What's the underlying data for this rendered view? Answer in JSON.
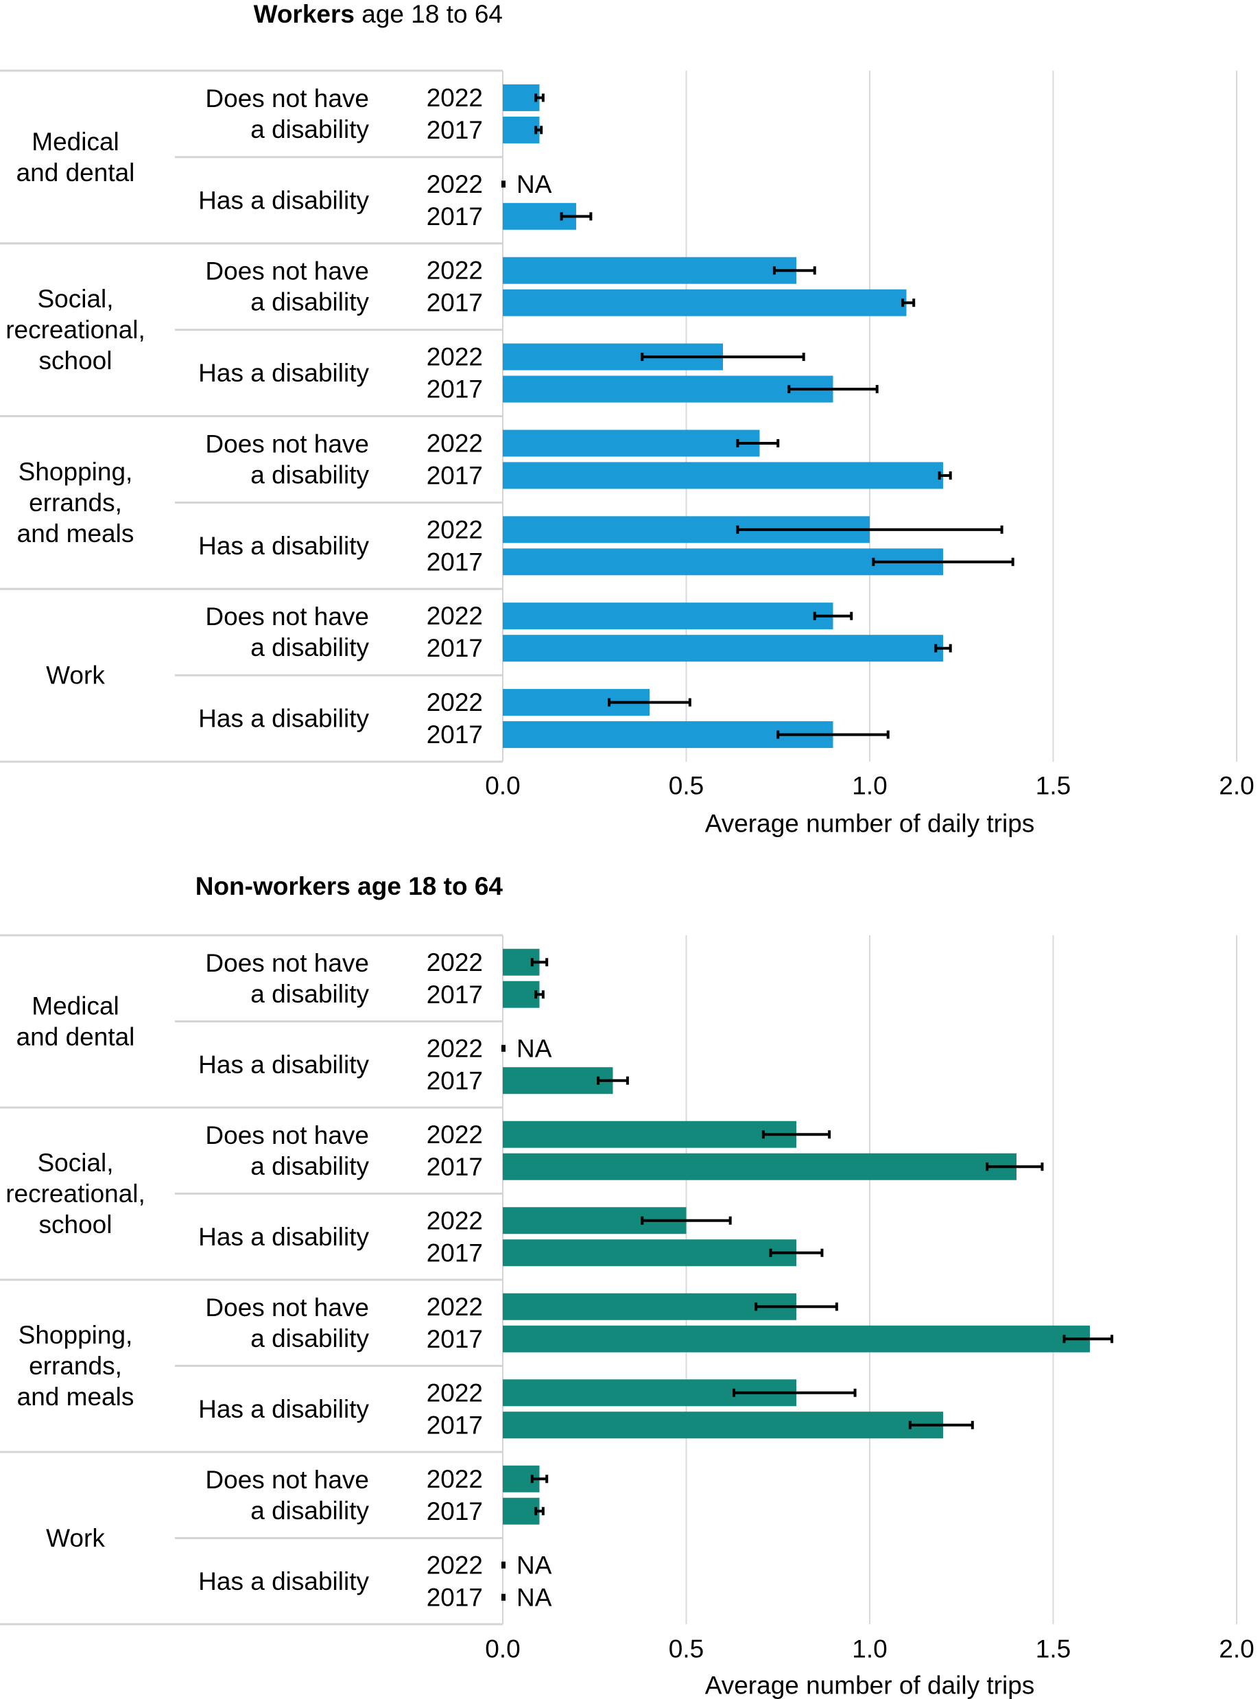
{
  "chart_data": [
    {
      "type": "bar",
      "orientation": "horizontal",
      "title": {
        "bold": "Workers",
        "rest": " age 18 to 64"
      },
      "xlabel": "Average number of daily trips",
      "xlim": [
        0,
        2.0
      ],
      "xticks": [
        "0.0",
        "0.5",
        "1.0",
        "1.5",
        "2.0"
      ],
      "grid": true,
      "color": "#1a9bd7",
      "groups": [
        {
          "name": "Medical and dental",
          "label_lines": [
            "Medical",
            "and dental"
          ],
          "subgroups": [
            {
              "label_lines": [
                "Does not have",
                "a disability"
              ],
              "bars": [
                {
                  "year": "2022",
                  "value": 0.1,
                  "err_low": 0.09,
                  "err_high": 0.11
                },
                {
                  "year": "2017",
                  "value": 0.1,
                  "err_low": 0.09,
                  "err_high": 0.105
                }
              ]
            },
            {
              "label_lines": [
                "Has a disability"
              ],
              "bars": [
                {
                  "year": "2022",
                  "value": null,
                  "na_label": "NA"
                },
                {
                  "year": "2017",
                  "value": 0.2,
                  "err_low": 0.16,
                  "err_high": 0.24
                }
              ]
            }
          ]
        },
        {
          "name": "Social, recreational, school",
          "label_lines": [
            "Social,",
            "recreational,",
            "school"
          ],
          "subgroups": [
            {
              "label_lines": [
                "Does not have",
                "a disability"
              ],
              "bars": [
                {
                  "year": "2022",
                  "value": 0.8,
                  "err_low": 0.74,
                  "err_high": 0.85
                },
                {
                  "year": "2017",
                  "value": 1.1,
                  "err_low": 1.09,
                  "err_high": 1.12
                }
              ]
            },
            {
              "label_lines": [
                "Has a disability"
              ],
              "bars": [
                {
                  "year": "2022",
                  "value": 0.6,
                  "err_low": 0.38,
                  "err_high": 0.82
                },
                {
                  "year": "2017",
                  "value": 0.9,
                  "err_low": 0.78,
                  "err_high": 1.02
                }
              ]
            }
          ]
        },
        {
          "name": "Shopping, errands, and meals",
          "label_lines": [
            "Shopping,",
            "errands,",
            "and meals"
          ],
          "subgroups": [
            {
              "label_lines": [
                "Does not have",
                "a disability"
              ],
              "bars": [
                {
                  "year": "2022",
                  "value": 0.7,
                  "err_low": 0.64,
                  "err_high": 0.75
                },
                {
                  "year": "2017",
                  "value": 1.2,
                  "err_low": 1.19,
                  "err_high": 1.22
                }
              ]
            },
            {
              "label_lines": [
                "Has a disability"
              ],
              "bars": [
                {
                  "year": "2022",
                  "value": 1.0,
                  "err_low": 0.64,
                  "err_high": 1.36
                },
                {
                  "year": "2017",
                  "value": 1.2,
                  "err_low": 1.01,
                  "err_high": 1.39
                }
              ]
            }
          ]
        },
        {
          "name": "Work",
          "label_lines": [
            "Work"
          ],
          "subgroups": [
            {
              "label_lines": [
                "Does not have",
                "a disability"
              ],
              "bars": [
                {
                  "year": "2022",
                  "value": 0.9,
                  "err_low": 0.85,
                  "err_high": 0.95
                },
                {
                  "year": "2017",
                  "value": 1.2,
                  "err_low": 1.18,
                  "err_high": 1.22
                }
              ]
            },
            {
              "label_lines": [
                "Has a disability"
              ],
              "bars": [
                {
                  "year": "2022",
                  "value": 0.4,
                  "err_low": 0.29,
                  "err_high": 0.51
                },
                {
                  "year": "2017",
                  "value": 0.9,
                  "err_low": 0.75,
                  "err_high": 1.05
                }
              ]
            }
          ]
        }
      ]
    },
    {
      "type": "bar",
      "orientation": "horizontal",
      "title": {
        "bold": "Non-workers age 18 to 64",
        "rest": ""
      },
      "xlabel": "Average number of daily trips",
      "xlim": [
        0,
        2.0
      ],
      "xticks": [
        "0.0",
        "0.5",
        "1.0",
        "1.5",
        "2.0"
      ],
      "grid": true,
      "color": "#12897b",
      "groups": [
        {
          "name": "Medical and dental",
          "label_lines": [
            "Medical",
            "and dental"
          ],
          "subgroups": [
            {
              "label_lines": [
                "Does not have",
                "a disability"
              ],
              "bars": [
                {
                  "year": "2022",
                  "value": 0.1,
                  "err_low": 0.08,
                  "err_high": 0.12
                },
                {
                  "year": "2017",
                  "value": 0.1,
                  "err_low": 0.09,
                  "err_high": 0.11
                }
              ]
            },
            {
              "label_lines": [
                "Has a disability"
              ],
              "bars": [
                {
                  "year": "2022",
                  "value": null,
                  "na_label": "NA"
                },
                {
                  "year": "2017",
                  "value": 0.3,
                  "err_low": 0.26,
                  "err_high": 0.34
                }
              ]
            }
          ]
        },
        {
          "name": "Social, recreational, school",
          "label_lines": [
            "Social,",
            "recreational,",
            "school"
          ],
          "subgroups": [
            {
              "label_lines": [
                "Does not have",
                "a disability"
              ],
              "bars": [
                {
                  "year": "2022",
                  "value": 0.8,
                  "err_low": 0.71,
                  "err_high": 0.89
                },
                {
                  "year": "2017",
                  "value": 1.4,
                  "err_low": 1.32,
                  "err_high": 1.47
                }
              ]
            },
            {
              "label_lines": [
                "Has a disability"
              ],
              "bars": [
                {
                  "year": "2022",
                  "value": 0.5,
                  "err_low": 0.38,
                  "err_high": 0.62
                },
                {
                  "year": "2017",
                  "value": 0.8,
                  "err_low": 0.73,
                  "err_high": 0.87
                }
              ]
            }
          ]
        },
        {
          "name": "Shopping, errands, and meals",
          "label_lines": [
            "Shopping,",
            "errands,",
            "and meals"
          ],
          "subgroups": [
            {
              "label_lines": [
                "Does not have",
                "a disability"
              ],
              "bars": [
                {
                  "year": "2022",
                  "value": 0.8,
                  "err_low": 0.69,
                  "err_high": 0.91
                },
                {
                  "year": "2017",
                  "value": 1.6,
                  "err_low": 1.53,
                  "err_high": 1.66
                }
              ]
            },
            {
              "label_lines": [
                "Has a disability"
              ],
              "bars": [
                {
                  "year": "2022",
                  "value": 0.8,
                  "err_low": 0.63,
                  "err_high": 0.96
                },
                {
                  "year": "2017",
                  "value": 1.2,
                  "err_low": 1.11,
                  "err_high": 1.28
                }
              ]
            }
          ]
        },
        {
          "name": "Work",
          "label_lines": [
            "Work"
          ],
          "subgroups": [
            {
              "label_lines": [
                "Does not have",
                "a disability"
              ],
              "bars": [
                {
                  "year": "2022",
                  "value": 0.1,
                  "err_low": 0.08,
                  "err_high": 0.12
                },
                {
                  "year": "2017",
                  "value": 0.1,
                  "err_low": 0.09,
                  "err_high": 0.11
                }
              ]
            },
            {
              "label_lines": [
                "Has a disability"
              ],
              "bars": [
                {
                  "year": "2022",
                  "value": null,
                  "na_label": "NA"
                },
                {
                  "year": "2017",
                  "value": null,
                  "na_label": "NA"
                }
              ]
            }
          ]
        }
      ]
    }
  ]
}
